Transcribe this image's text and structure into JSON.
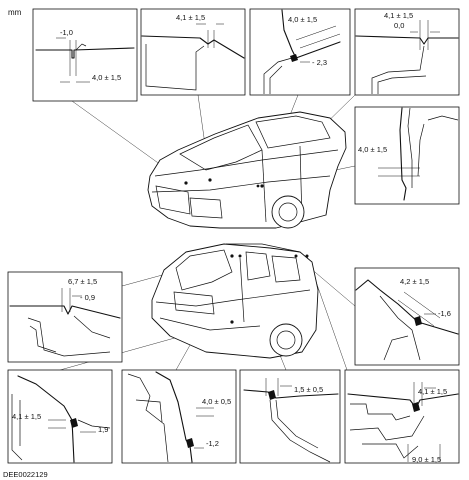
{
  "unit_label": "mm",
  "drawing_code": "DEE0022129",
  "detail_views": [
    {
      "id": "d1",
      "labels": [
        "-1,0",
        "4,0 ± 1,5"
      ]
    },
    {
      "id": "d2",
      "labels": [
        "4,1 ± 1,5"
      ]
    },
    {
      "id": "d3",
      "labels": [
        "4,0 ± 1,5",
        "- 2,3"
      ]
    },
    {
      "id": "d4",
      "labels": [
        "4,1 ± 1,5",
        "0,0"
      ]
    },
    {
      "id": "d5",
      "labels": [
        "4,0 ± 1,5"
      ]
    },
    {
      "id": "d6",
      "labels": [
        "6,7 ± 1,5",
        "- 0,9"
      ]
    },
    {
      "id": "d7",
      "labels": [
        "4,2 ± 1,5",
        "-1,6"
      ]
    },
    {
      "id": "d8",
      "labels": [
        "4,1 ± 1,5",
        "1,9"
      ]
    },
    {
      "id": "d9",
      "labels": [
        "4,0 ± 0,5",
        "-1,2"
      ]
    },
    {
      "id": "d10",
      "labels": [
        "1,5 ± 0,5"
      ]
    },
    {
      "id": "d11",
      "labels": [
        "4,1 ± 1,5",
        "9,0 ± 1,5"
      ]
    }
  ]
}
